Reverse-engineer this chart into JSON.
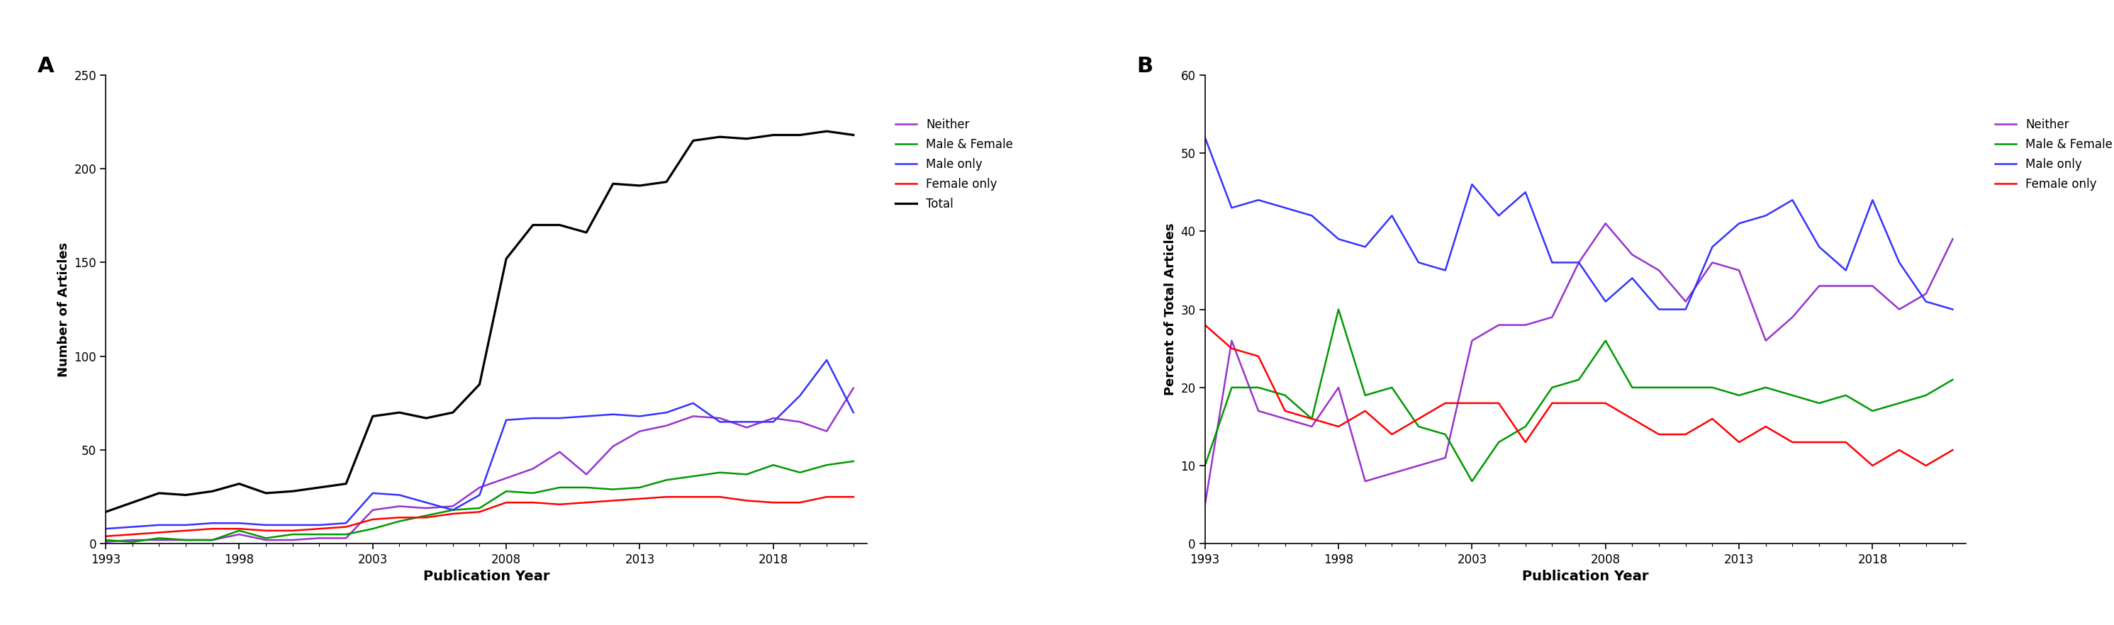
{
  "years": [
    1993,
    1994,
    1995,
    1996,
    1997,
    1998,
    1999,
    2000,
    2001,
    2002,
    2003,
    2004,
    2005,
    2006,
    2007,
    2008,
    2009,
    2010,
    2011,
    2012,
    2013,
    2014,
    2015,
    2016,
    2017,
    2018,
    2019,
    2020,
    2021
  ],
  "total": [
    17,
    22,
    27,
    26,
    28,
    32,
    27,
    28,
    30,
    32,
    68,
    70,
    67,
    70,
    85,
    152,
    170,
    170,
    166,
    192,
    191,
    193,
    215,
    217,
    216,
    218,
    218,
    220,
    218
  ],
  "neither": [
    1,
    2,
    2,
    2,
    2,
    5,
    2,
    2,
    3,
    3,
    18,
    20,
    19,
    20,
    30,
    35,
    40,
    49,
    37,
    52,
    60,
    63,
    68,
    67,
    62,
    67,
    65,
    60,
    83
  ],
  "male_female": [
    2,
    1,
    3,
    2,
    2,
    7,
    3,
    5,
    5,
    5,
    8,
    12,
    15,
    18,
    19,
    28,
    27,
    30,
    30,
    29,
    30,
    34,
    36,
    38,
    37,
    42,
    38,
    42,
    44
  ],
  "male_only": [
    8,
    9,
    10,
    10,
    11,
    11,
    10,
    10,
    10,
    11,
    27,
    26,
    22,
    18,
    26,
    66,
    67,
    67,
    68,
    69,
    68,
    70,
    75,
    65,
    65,
    65,
    79,
    98,
    70
  ],
  "female_only": [
    4,
    5,
    6,
    7,
    8,
    8,
    7,
    7,
    8,
    9,
    13,
    14,
    14,
    16,
    17,
    22,
    22,
    21,
    22,
    23,
    24,
    25,
    25,
    25,
    23,
    22,
    22,
    25,
    25
  ],
  "pct_neither": [
    5,
    26,
    17,
    16,
    15,
    20,
    8,
    9,
    10,
    11,
    26,
    28,
    28,
    29,
    36,
    41,
    37,
    35,
    31,
    36,
    35,
    26,
    29,
    33,
    33,
    33,
    30,
    32,
    39
  ],
  "pct_male_female": [
    10,
    20,
    20,
    19,
    16,
    30,
    19,
    20,
    15,
    14,
    8,
    13,
    15,
    20,
    21,
    26,
    20,
    20,
    20,
    20,
    19,
    20,
    19,
    18,
    19,
    17,
    18,
    19,
    21
  ],
  "pct_male_only": [
    52,
    43,
    44,
    43,
    42,
    39,
    38,
    42,
    36,
    35,
    46,
    42,
    45,
    36,
    36,
    31,
    34,
    30,
    30,
    38,
    41,
    42,
    44,
    38,
    35,
    44,
    36,
    31,
    30
  ],
  "pct_female_only": [
    28,
    25,
    24,
    17,
    16,
    15,
    17,
    14,
    16,
    18,
    18,
    18,
    13,
    18,
    18,
    18,
    16,
    14,
    14,
    16,
    13,
    15,
    13,
    13,
    13,
    10,
    12,
    10,
    12
  ],
  "color_neither": "#9933cc",
  "color_male_female": "#009900",
  "color_male_only": "#3333ff",
  "color_female_only": "#ff0000",
  "color_total": "#000000",
  "ylabel_A": "Number of Articles",
  "ylabel_B": "Percent of Total Articles",
  "xlabel": "Publication Year",
  "ylim_A": [
    0,
    250
  ],
  "ylim_B": [
    0,
    60
  ],
  "yticks_A": [
    0,
    50,
    100,
    150,
    200,
    250
  ],
  "yticks_B": [
    0,
    10,
    20,
    30,
    40,
    50,
    60
  ],
  "xticks_major": [
    1993,
    1998,
    2003,
    2008,
    2013,
    2018
  ],
  "label_A": "A",
  "label_B": "B",
  "legend_A": [
    "Neither",
    "Male & Female",
    "Male only",
    "Female only",
    "Total"
  ],
  "legend_B": [
    "Neither",
    "Male & Female",
    "Male only",
    "Female only"
  ],
  "lw": 1.8
}
